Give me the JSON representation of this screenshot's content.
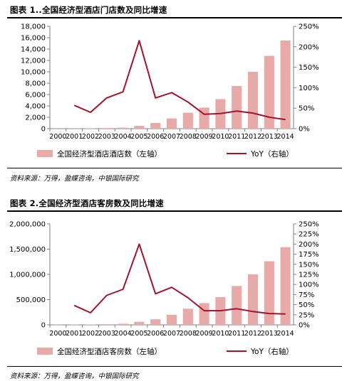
{
  "figures": [
    {
      "title": "图表 1..全国经济型酒店门店数及同比增速",
      "source": "资料来源：万得，盈蝶咨询，中银国际研究",
      "legend": {
        "bar_label": "全国经济型酒店酒店数（左轴）",
        "line_label": "YoY（右轴）"
      },
      "colors": {
        "bar": "#e7aaa8",
        "line": "#a1142c",
        "axis": "#7f7f7f"
      }
    },
    {
      "title": "图表 2.全国经济型酒店客房数及同比增速",
      "source": "资料来源：万得，盈蝶咨询，中银国际研究",
      "legend": {
        "bar_label": "全国经济型酒店客房数（左轴）",
        "line_label": "YoY（右轴）"
      },
      "colors": {
        "bar": "#e7aaa8",
        "line": "#a1142c",
        "axis": "#7f7f7f"
      }
    }
  ],
  "chart_data": [
    {
      "type": "bar",
      "categories": [
        "2000",
        "2001",
        "2002",
        "2003",
        "2004",
        "2005",
        "2006",
        "2007",
        "2008",
        "2009",
        "2010",
        "2011",
        "2012",
        "2013",
        "2014"
      ],
      "left_axis": {
        "ylim": [
          0,
          18000
        ],
        "ticks": [
          0,
          2000,
          4000,
          6000,
          8000,
          10000,
          12000,
          14000,
          16000,
          18000
        ],
        "tick_labels": [
          "0",
          "2,000",
          "4,000",
          "6,000",
          "8,000",
          "10,000",
          "12,000",
          "14,000",
          "16,000",
          "18,000"
        ]
      },
      "right_axis": {
        "ylim": [
          0,
          250
        ],
        "ticks": [
          0,
          50,
          100,
          150,
          200,
          250
        ],
        "tick_labels": [
          "0%",
          "50%",
          "100%",
          "150%",
          "200%",
          "250%"
        ]
      },
      "grid": false,
      "legend_position": "bottom",
      "series": [
        {
          "name": "全国经济型酒店酒店数（左轴）",
          "type": "bar",
          "axis": "left",
          "values": [
            20,
            30,
            50,
            100,
            180,
            500,
            1000,
            1800,
            2800,
            3700,
            5200,
            7500,
            10000,
            12800,
            15500
          ]
        },
        {
          "name": "YoY（右轴）",
          "type": "line",
          "axis": "right",
          "values": [
            null,
            57,
            40,
            75,
            90,
            215,
            75,
            88,
            65,
            35,
            37,
            43,
            38,
            28,
            22
          ]
        }
      ]
    },
    {
      "type": "bar",
      "categories": [
        "2000",
        "2001",
        "2002",
        "2003",
        "2004",
        "2005",
        "2006",
        "2007",
        "2008",
        "2009",
        "2010",
        "2011",
        "2012",
        "2013",
        "2014"
      ],
      "left_axis": {
        "ylim": [
          0,
          2000000
        ],
        "ticks": [
          0,
          500000,
          1000000,
          1500000,
          2000000
        ],
        "tick_labels": [
          "0",
          "500,000",
          "1,000,000",
          "1,500,000",
          "2,000,000"
        ]
      },
      "right_axis": {
        "ylim": [
          0,
          250
        ],
        "ticks": [
          0,
          25,
          50,
          75,
          100,
          125,
          150,
          175,
          200,
          225,
          250
        ],
        "tick_labels": [
          "0%",
          "25%",
          "50%",
          "75%",
          "100%",
          "125%",
          "150%",
          "175%",
          "200%",
          "225%",
          "250%"
        ]
      },
      "grid": false,
      "legend_position": "bottom",
      "series": [
        {
          "name": "全国经济型酒店客房数（左轴）",
          "type": "bar",
          "axis": "left",
          "values": [
            3000,
            5000,
            7000,
            12000,
            22000,
            60000,
            110000,
            200000,
            320000,
            430000,
            550000,
            770000,
            1000000,
            1260000,
            1540000
          ]
        },
        {
          "name": "YoY（右轴）",
          "type": "line",
          "axis": "right",
          "values": [
            null,
            48,
            30,
            73,
            88,
            200,
            77,
            93,
            67,
            35,
            35,
            40,
            33,
            28,
            27
          ]
        }
      ]
    }
  ]
}
